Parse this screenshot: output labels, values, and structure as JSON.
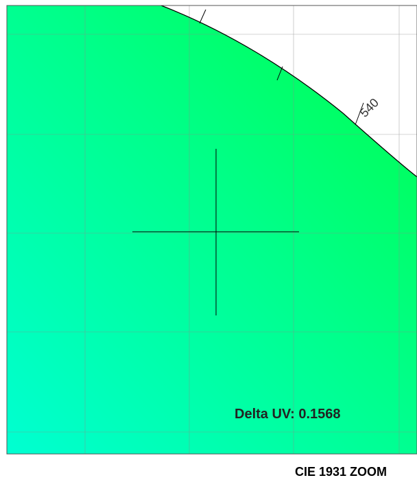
{
  "diagram": {
    "title": "CIE 1931 ZOOM",
    "delta_label": "Delta UV: 0.1568",
    "wavelength_labels": [
      "540"
    ],
    "colors": {
      "fill_start": "#00ffd2",
      "fill_end": "#00ff48",
      "grid": "#8a8a8a",
      "locus": "#000000",
      "crosshair": "#000000",
      "text": "#222222"
    }
  }
}
